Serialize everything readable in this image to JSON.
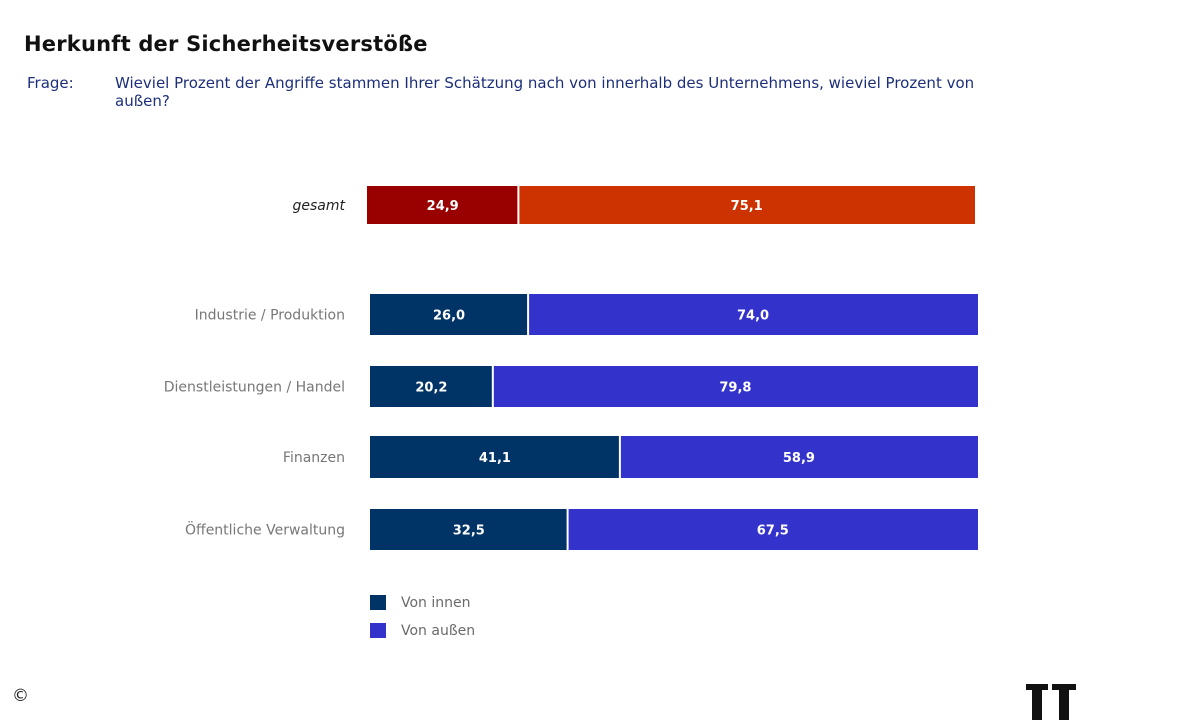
{
  "title": "Herkunft der Sicherheitsverstöße",
  "question_label": "Frage:",
  "question_text": "Wieviel Prozent der Angriffe stammen Ihrer Schätzung nach von innerhalb des Unternehmens, wieviel Prozent von außen?",
  "copyright_symbol": "©",
  "chart_data": {
    "type": "bar",
    "orientation": "horizontal",
    "stacked": true,
    "categories": [
      "gesamt",
      "Industrie / Produktion",
      "Dienstleistungen / Handel",
      "Finanzen",
      "Öffentliche Verwaltung"
    ],
    "value_labels": [
      [
        "24,9",
        "75,1"
      ],
      [
        "26,0",
        "74,0"
      ],
      [
        "20,2",
        "79,8"
      ],
      [
        "41,1",
        "58,9"
      ],
      [
        "32,5",
        "67,5"
      ]
    ],
    "series": [
      {
        "name": "Von innen",
        "values": [
          24.9,
          26.0,
          20.2,
          41.1,
          32.5
        ]
      },
      {
        "name": "Von außen",
        "values": [
          75.1,
          74.0,
          79.8,
          58.9,
          67.5
        ]
      }
    ],
    "colors": {
      "total_inner": "#990000",
      "total_outer": "#cc3300",
      "inner": "#003366",
      "outer": "#3333cc"
    },
    "xlim": [
      0,
      100
    ],
    "grid": false,
    "legend_position": "bottom-left"
  }
}
